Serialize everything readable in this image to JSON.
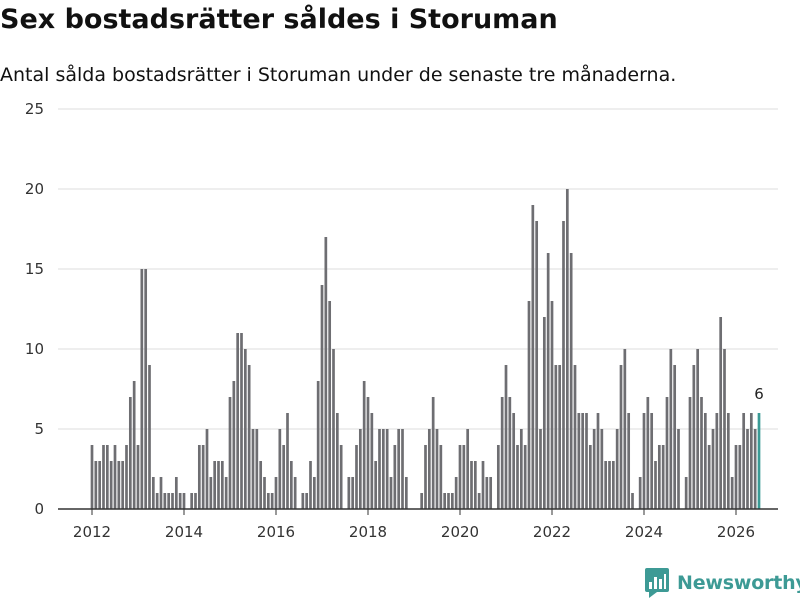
{
  "title": "Sex bostadsrätter såldes i Storuman",
  "subtitle": "Antal sålda bostadsrätter i Storuman under de senaste tre månaderna.",
  "brand": {
    "name": "Newsworthy",
    "icon": "newsworthy-logo-icon",
    "color": "#3d9a95"
  },
  "colors": {
    "bar": "#6e6e72",
    "highlight": "#3a9a95",
    "grid": "#dddddd",
    "axis": "#333333"
  },
  "chart_data": {
    "type": "bar",
    "title": "Sex bostadsrätter såldes i Storuman",
    "subtitle": "Antal sålda bostadsrätter i Storuman under de senaste tre månaderna.",
    "xlabel": "",
    "ylabel": "",
    "ylim": [
      0,
      25
    ],
    "yticks": [
      0,
      5,
      10,
      15,
      20,
      25
    ],
    "xticks": [
      2012,
      2014,
      2016,
      2018,
      2020,
      2022,
      2024,
      2026
    ],
    "x_start": 2012,
    "x_step_years": 0.08333333,
    "grid": true,
    "highlight_label": "6",
    "series": [
      {
        "name": "Sålda bostadsrätter",
        "values": [
          4,
          3,
          3,
          4,
          4,
          3,
          4,
          3,
          3,
          4,
          7,
          8,
          4,
          15,
          15,
          9,
          2,
          1,
          2,
          1,
          1,
          1,
          2,
          1,
          1,
          0,
          1,
          1,
          4,
          4,
          5,
          2,
          3,
          3,
          3,
          2,
          7,
          8,
          11,
          11,
          10,
          9,
          5,
          5,
          3,
          2,
          1,
          1,
          2,
          5,
          4,
          6,
          3,
          2,
          0,
          1,
          1,
          3,
          2,
          8,
          14,
          17,
          13,
          10,
          6,
          4,
          0,
          2,
          2,
          4,
          5,
          8,
          7,
          6,
          3,
          5,
          5,
          5,
          2,
          4,
          5,
          5,
          2,
          0,
          0,
          0,
          1,
          4,
          5,
          7,
          5,
          4,
          1,
          1,
          1,
          2,
          4,
          4,
          5,
          3,
          3,
          1,
          3,
          2,
          2,
          0,
          4,
          7,
          9,
          7,
          6,
          4,
          5,
          4,
          13,
          19,
          18,
          5,
          12,
          16,
          13,
          9,
          9,
          18,
          20,
          16,
          9,
          6,
          6,
          6,
          4,
          5,
          6,
          5,
          3,
          3,
          3,
          5,
          9,
          10,
          6,
          1,
          0,
          2,
          6,
          7,
          6,
          3,
          4,
          4,
          7,
          10,
          9,
          5,
          0,
          2,
          7,
          9,
          10,
          7,
          6,
          4,
          5,
          6,
          12,
          10,
          6,
          2,
          4,
          4,
          6,
          5,
          6,
          5,
          6
        ]
      }
    ]
  }
}
